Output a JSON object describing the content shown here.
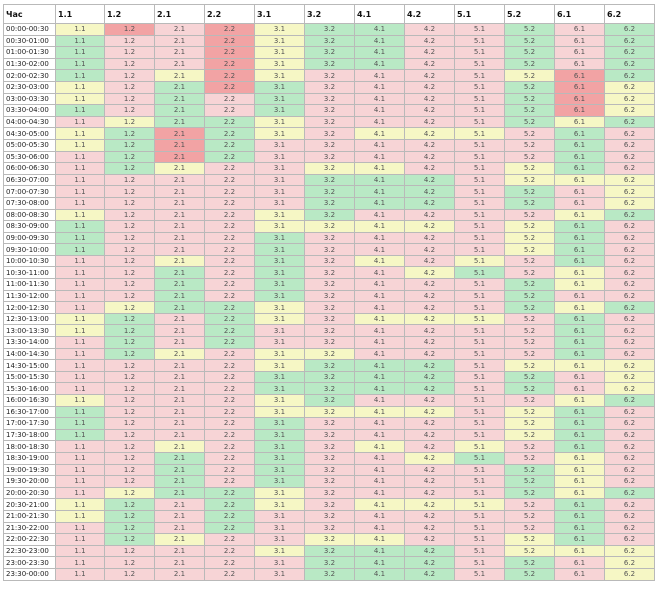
{
  "table": {
    "header": [
      "Час",
      "1.1",
      "1.2",
      "2.1",
      "2.2",
      "3.1",
      "3.2",
      "4.1",
      "4.2",
      "5.1",
      "5.2",
      "6.1",
      "6.2"
    ],
    "cell_labels": [
      "1.1",
      "1.2",
      "2.1",
      "2.2",
      "3.1",
      "3.2",
      "4.1",
      "4.2",
      "5.1",
      "5.2",
      "6.1",
      "6.2"
    ],
    "colors": {
      "p": "#f7d4d6",
      "g": "#b9e9c5",
      "y": "#f6f7c5",
      "r": "#f2a3a4"
    },
    "rows": [
      {
        "hour": "00:00-00:30",
        "s": "yrpryggppgpg"
      },
      {
        "hour": "00:30-01:00",
        "s": "gppryggppgpg"
      },
      {
        "hour": "01:00-01:30",
        "s": "gppryggppgpg"
      },
      {
        "hour": "01:30-02:00",
        "s": "gppryggppgpg"
      },
      {
        "hour": "02:00-02:30",
        "s": "gpyryppppyrg"
      },
      {
        "hour": "02:30-03:00",
        "s": "ypgrgppppgry"
      },
      {
        "hour": "03:00-03:30",
        "s": "ypgpgppppgry"
      },
      {
        "hour": "03:30-04:00",
        "s": "gpgpgppppgry"
      },
      {
        "hour": "04:00-04:30",
        "s": "pyggyppppgyg"
      },
      {
        "hour": "04:30-05:00",
        "s": "ygrgypyyypgp"
      },
      {
        "hour": "05:00-05:30",
        "s": "ygrgppppppgp"
      },
      {
        "hour": "05:30-06:00",
        "s": "pgrgppppppgp"
      },
      {
        "hour": "06:00-06:30",
        "s": "pgyppyyppygp"
      },
      {
        "hour": "06:30-07:00",
        "s": "pppppgggpyyy"
      },
      {
        "hour": "07:00-07:30",
        "s": "pppppgggpgpy"
      },
      {
        "hour": "07:30-08:00",
        "s": "pppppgggpgpy"
      },
      {
        "hour": "08:00-08:30",
        "s": "ypppygppppyg"
      },
      {
        "hour": "08:30-09:00",
        "s": "gpppyyyypygp"
      },
      {
        "hour": "09:00-09:30",
        "s": "gpppgppppygp"
      },
      {
        "hour": "09:30-10:00",
        "s": "gpppgppppygp"
      },
      {
        "hour": "10:00-10:30",
        "s": "ppypgpypypgp"
      },
      {
        "hour": "10:30-11:00",
        "s": "ppgpgppygpyp"
      },
      {
        "hour": "11:00-11:30",
        "s": "ppgpgppppgyp"
      },
      {
        "hour": "11:30-12:00",
        "s": "ppgpgppppgpp"
      },
      {
        "hour": "12:00-12:30",
        "s": "pyggyppppgyg"
      },
      {
        "hour": "12:30-13:00",
        "s": "ygpgypyyypgp"
      },
      {
        "hour": "13:00-13:30",
        "s": "ygpgppppppgp"
      },
      {
        "hour": "13:30-14:00",
        "s": "pgpgppppppgp"
      },
      {
        "hour": "14:00-14:30",
        "s": "pgypyyppppgp"
      },
      {
        "hour": "14:30-15:00",
        "s": "ppppygggpyyy"
      },
      {
        "hour": "15:00-15:30",
        "s": "ppppggggpgpy"
      },
      {
        "hour": "15:30-16:00",
        "s": "ppppggggpgpy"
      },
      {
        "hour": "16:00-16:30",
        "s": "ypppygppppyg"
      },
      {
        "hour": "16:30-17:00",
        "s": "gpppyyyypygp"
      },
      {
        "hour": "17:00-17:30",
        "s": "gpppgppppygp"
      },
      {
        "hour": "17:30-18:00",
        "s": "gpppgppppygp"
      },
      {
        "hour": "18:00-18:30",
        "s": "ppypgpypypgp"
      },
      {
        "hour": "18:30-19:00",
        "s": "ppgpgppygpyp"
      },
      {
        "hour": "19:00-19:30",
        "s": "ppgpgppppgyp"
      },
      {
        "hour": "19:30-20:00",
        "s": "ppgpgppppgyp"
      },
      {
        "hour": "20:00-20:30",
        "s": "pyggyppppgyg"
      },
      {
        "hour": "20:30-21:00",
        "s": "ygpgypyyypgp"
      },
      {
        "hour": "21:00-21:30",
        "s": "ygpgppppppgp"
      },
      {
        "hour": "21:30-22:00",
        "s": "pgpgppppppgp"
      },
      {
        "hour": "22:00-22:30",
        "s": "pgyppyyppygp"
      },
      {
        "hour": "22:30-23:00",
        "s": "ppppygggpyyy"
      },
      {
        "hour": "23:00-23:30",
        "s": "pppppgggpgpy"
      },
      {
        "hour": "23:30-00:00",
        "s": "pppppgggpgpy"
      }
    ]
  }
}
